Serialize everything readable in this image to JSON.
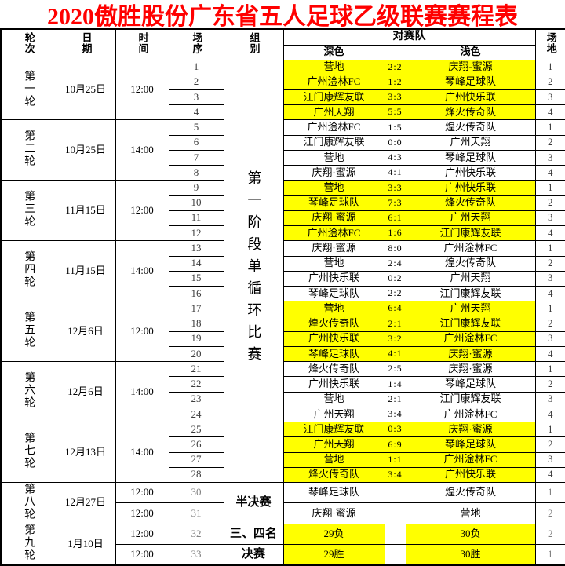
{
  "title": "2020傲胜股份广东省五人足球乙级联赛赛程表",
  "colors": {
    "title_red": "#ff0000",
    "highlight_yellow": "#ffff00",
    "border_black": "#000000",
    "number_gray": "#3d3d3d",
    "muted_gray": "#808080"
  },
  "header": {
    "round": "轮次",
    "date": "日期",
    "time": "时间",
    "match_no": "场序",
    "group": "组别",
    "opponents": "对赛队",
    "dark": "深色",
    "light": "浅色",
    "field": "场地"
  },
  "schedule": {
    "stage1": {
      "group_label": "第一阶段单循环比赛",
      "rounds": [
        {
          "label": "第一轮",
          "date": "10月25日",
          "time": "12:00"
        },
        {
          "label": "第二轮",
          "date": "10月25日",
          "time": "14:00"
        },
        {
          "label": "第三轮",
          "date": "11月15日",
          "time": "12:00"
        },
        {
          "label": "第四轮",
          "date": "11月15日",
          "time": "14:00"
        },
        {
          "label": "第五轮",
          "date": "12月6日",
          "time": "12:00"
        },
        {
          "label": "第六轮",
          "date": "12月6日",
          "time": "14:00"
        },
        {
          "label": "第七轮",
          "date": "12月13日",
          "time": "14:00"
        }
      ],
      "matches": [
        {
          "no": "1",
          "dark": "营地",
          "score": "2:2",
          "light": "庆翔-蜜源",
          "field": "1",
          "highlight": true
        },
        {
          "no": "2",
          "dark": "广州淦林FC",
          "score": "1:2",
          "light": "琴峰足球队",
          "field": "2",
          "highlight": true
        },
        {
          "no": "3",
          "dark": "江门康辉友联",
          "score": "3:3",
          "light": "广州快乐联",
          "field": "3",
          "highlight": true
        },
        {
          "no": "4",
          "dark": "广州天翔",
          "score": "5:5",
          "light": "烽火传奇队",
          "field": "4",
          "highlight": true
        },
        {
          "no": "5",
          "dark": "广州淦林FC",
          "score": "1:5",
          "light": "煌火传奇队",
          "field": "1",
          "highlight": false
        },
        {
          "no": "6",
          "dark": "江门康辉友联",
          "score": "0:0",
          "light": "广州天翔",
          "field": "2",
          "highlight": false
        },
        {
          "no": "7",
          "dark": "营地",
          "score": "4:3",
          "light": "琴峰足球队",
          "field": "3",
          "highlight": false
        },
        {
          "no": "8",
          "dark": "庆翔·蜜源",
          "score": "4:1",
          "light": "广州快乐联",
          "field": "4",
          "highlight": false
        },
        {
          "no": "9",
          "dark": "营地",
          "score": "3:3",
          "light": "广州快乐联",
          "field": "1",
          "highlight": true
        },
        {
          "no": "10",
          "dark": "琴峰足球队",
          "score": "7:3",
          "light": "烽火传奇队",
          "field": "2",
          "highlight": true
        },
        {
          "no": "11",
          "dark": "庆翔·蜜源",
          "score": "6:1",
          "light": "广州天翔",
          "field": "3",
          "highlight": true
        },
        {
          "no": "12",
          "dark": "广州淦林FC",
          "score": "1:6",
          "light": "江门康辉友联",
          "field": "4",
          "highlight": true
        },
        {
          "no": "13",
          "dark": "庆翔·蜜源",
          "score": "8:0",
          "light": "广州淦林FC",
          "field": "1",
          "highlight": false
        },
        {
          "no": "14",
          "dark": "营地",
          "score": "2:4",
          "light": "煌火传奇队",
          "field": "2",
          "highlight": false
        },
        {
          "no": "15",
          "dark": "广州快乐联",
          "score": "0:2",
          "light": "广州天翔",
          "field": "3",
          "highlight": false
        },
        {
          "no": "16",
          "dark": "琴峰足球队",
          "score": "2:2",
          "light": "江门康辉友联",
          "field": "4",
          "highlight": false
        },
        {
          "no": "17",
          "dark": "营地",
          "score": "6:4",
          "light": "广州天翔",
          "field": "1",
          "highlight": true
        },
        {
          "no": "18",
          "dark": "煌火传奇队",
          "score": "2:1",
          "light": "江门康辉友联",
          "field": "2",
          "highlight": true
        },
        {
          "no": "19",
          "dark": "广州快乐联",
          "score": "3:2",
          "light": "广州淦林FC",
          "field": "3",
          "highlight": true
        },
        {
          "no": "20",
          "dark": "琴峰足球队",
          "score": "4:1",
          "light": "庆翔·蜜源",
          "field": "4",
          "highlight": true
        },
        {
          "no": "21",
          "dark": "烽火传奇队",
          "score": "2:5",
          "light": "庆翔·蜜源",
          "field": "1",
          "highlight": false
        },
        {
          "no": "22",
          "dark": "广州快乐联",
          "score": "1:4",
          "light": "琴峰足球队",
          "field": "2",
          "highlight": false
        },
        {
          "no": "23",
          "dark": "营地",
          "score": "2:1",
          "light": "江门康辉友联",
          "field": "3",
          "highlight": false
        },
        {
          "no": "24",
          "dark": "广州天翔",
          "score": "3:4",
          "light": "广州淦林FC",
          "field": "4",
          "highlight": false
        },
        {
          "no": "25",
          "dark": "江门康辉友联",
          "score": "0:3",
          "light": "庆翔·蜜源",
          "field": "1",
          "highlight": true
        },
        {
          "no": "26",
          "dark": "广州天翔",
          "score": "6:9",
          "light": "琴峰足球队",
          "field": "2",
          "highlight": true
        },
        {
          "no": "27",
          "dark": "营地",
          "score": "1:1",
          "light": "广州淦林FC",
          "field": "3",
          "highlight": true
        },
        {
          "no": "28",
          "dark": "烽火传奇队",
          "score": "3:4",
          "light": "广州快乐联",
          "field": "4",
          "highlight": true
        }
      ]
    },
    "finals": {
      "rounds": [
        {
          "label": "第八轮",
          "date": "12月27日",
          "rows": [
            {
              "time": "12:00",
              "no": "30",
              "group": "半决赛",
              "group_rowspan": 2,
              "dark": "琴峰足球队",
              "score": "",
              "light": "煌火传奇队",
              "field": "1",
              "highlight": false
            },
            {
              "time": "12:00",
              "no": "31",
              "dark": "庆翔·蜜源",
              "score": "",
              "light": "营地",
              "field": "2",
              "highlight": false
            }
          ]
        },
        {
          "label": "第九轮",
          "date": "1月10日",
          "rows": [
            {
              "time": "12:00",
              "no": "32",
              "group": "三、四名",
              "dark": "29负",
              "score": "",
              "light": "30负",
              "field": "2",
              "highlight": true
            },
            {
              "time": "12:00",
              "no": "33",
              "group": "决赛",
              "dark": "29胜",
              "score": "",
              "light": "30胜",
              "field": "1",
              "highlight": true
            }
          ]
        }
      ]
    }
  }
}
